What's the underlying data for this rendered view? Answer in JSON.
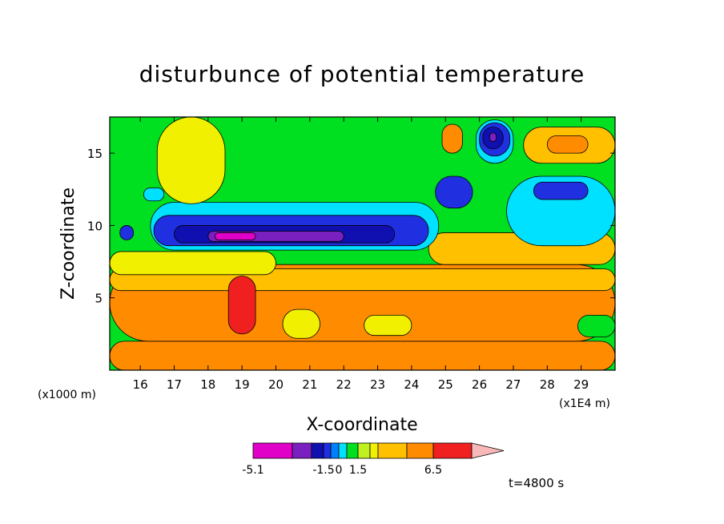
{
  "chart_data": {
    "type": "heatmap",
    "title": "disturbunce of potential temperature",
    "xlabel": "X-coordinate",
    "ylabel": "Z-coordinate",
    "x_tick_labels": [
      "16",
      "17",
      "18",
      "19",
      "20",
      "21",
      "22",
      "23",
      "24",
      "25",
      "26",
      "27",
      "28",
      "29"
    ],
    "x_ticks": [
      16,
      17,
      18,
      19,
      20,
      21,
      22,
      23,
      24,
      25,
      26,
      27,
      28,
      29
    ],
    "xlim": [
      15.1,
      30.0
    ],
    "x_units_left": "(x1000 m)",
    "x_units_right": "(x1E4 m)",
    "y_tick_labels": [
      "5",
      "10",
      "15"
    ],
    "y_ticks": [
      5,
      10,
      15
    ],
    "ylim": [
      0,
      17.5
    ],
    "time_label": "t=4800 s",
    "colorbar": {
      "labels": [
        {
          "text": "-5.1",
          "level": 0
        },
        {
          "text": "-1.5",
          "level": 3
        },
        {
          "text": "0",
          "level": 5
        },
        {
          "text": "1.5",
          "level": 7
        },
        {
          "text": "6.5",
          "level": 11
        }
      ],
      "colors": [
        "#e000c8",
        "#7a20c0",
        "#1010b0",
        "#2030e0",
        "#0080ff",
        "#00e0ff",
        "#00e020",
        "#c0f020",
        "#f0f000",
        "#ffc000",
        "#ff8c00",
        "#f02020",
        "#f07878",
        "#f8b8b8"
      ]
    },
    "regions": [
      {
        "name": "surface-layer",
        "x": [
          15.1,
          30.0
        ],
        "y": [
          0,
          2.0
        ],
        "level": 10
      },
      {
        "name": "lower-warm-band",
        "x": [
          15.1,
          30.0
        ],
        "y": [
          2.0,
          7.3
        ],
        "level": 10
      },
      {
        "name": "upper-warm-band",
        "x": [
          15.1,
          30.0
        ],
        "y": [
          5.5,
          7.0
        ],
        "level": 9
      },
      {
        "name": "stable-band-west",
        "x": [
          15.1,
          20.0
        ],
        "y": [
          6.6,
          8.2
        ],
        "level": 8
      },
      {
        "name": "stable-band-east",
        "x": [
          24.5,
          30.0
        ],
        "y": [
          7.3,
          9.5
        ],
        "level": 9
      },
      {
        "name": "warm-core-19",
        "x": [
          18.6,
          19.4
        ],
        "y": [
          2.5,
          6.5
        ],
        "level": 11
      },
      {
        "name": "yellow-patch-21",
        "x": [
          20.2,
          21.3
        ],
        "y": [
          2.2,
          4.2
        ],
        "level": 8
      },
      {
        "name": "yellow-patch-23",
        "x": [
          22.6,
          24.0
        ],
        "y": [
          2.4,
          3.8
        ],
        "level": 8
      },
      {
        "name": "green-patch-29",
        "x": [
          28.9,
          30.0
        ],
        "y": [
          2.3,
          3.8
        ],
        "level": 6
      },
      {
        "name": "cold-band-cyan",
        "x": [
          16.3,
          24.8
        ],
        "y": [
          8.3,
          11.6
        ],
        "level": 5
      },
      {
        "name": "cold-band-blue",
        "x": [
          16.4,
          24.5
        ],
        "y": [
          8.6,
          10.7
        ],
        "level": 3
      },
      {
        "name": "cold-band-navy",
        "x": [
          17.0,
          23.5
        ],
        "y": [
          8.8,
          10.0
        ],
        "level": 2
      },
      {
        "name": "cold-core-purple",
        "x": [
          18.0,
          22.0
        ],
        "y": [
          8.9,
          9.6
        ],
        "level": 1
      },
      {
        "name": "cold-core-magenta",
        "x": [
          18.2,
          19.4
        ],
        "y": [
          9.0,
          9.5
        ],
        "level": 0
      },
      {
        "name": "east-cyan-lobe",
        "x": [
          26.8,
          30.0
        ],
        "y": [
          8.6,
          13.4
        ],
        "level": 5
      },
      {
        "name": "east-blue-lobe",
        "x": [
          27.6,
          29.2
        ],
        "y": [
          11.8,
          13.0
        ],
        "level": 3
      },
      {
        "name": "orange-lobe-28",
        "x": [
          27.3,
          30.0
        ],
        "y": [
          14.3,
          16.8
        ],
        "level": 9
      },
      {
        "name": "orange-core-28",
        "x": [
          28.0,
          29.2
        ],
        "y": [
          15.0,
          16.2
        ],
        "level": 10
      },
      {
        "name": "vortex-26-cyan",
        "x": [
          25.9,
          27.0
        ],
        "y": [
          14.3,
          17.3
        ],
        "level": 5
      },
      {
        "name": "vortex-26-blue",
        "x": [
          26.0,
          26.9
        ],
        "y": [
          14.8,
          17.1
        ],
        "level": 3
      },
      {
        "name": "vortex-26-navy",
        "x": [
          26.1,
          26.7
        ],
        "y": [
          15.3,
          16.8
        ],
        "level": 2
      },
      {
        "name": "vortex-26-core",
        "x": [
          26.3,
          26.5
        ],
        "y": [
          15.8,
          16.4
        ],
        "level": 1
      },
      {
        "name": "blue-blob-25",
        "x": [
          24.7,
          25.8
        ],
        "y": [
          11.2,
          13.4
        ],
        "level": 3
      },
      {
        "name": "orange-blob-25",
        "x": [
          24.9,
          25.5
        ],
        "y": [
          15.0,
          17.0
        ],
        "level": 10
      },
      {
        "name": "yellow-arc-west",
        "x": [
          16.5,
          18.5
        ],
        "y": [
          11.5,
          17.5
        ],
        "level": 8
      },
      {
        "name": "cyan-blob-west",
        "x": [
          16.1,
          16.7
        ],
        "y": [
          11.7,
          12.6
        ],
        "level": 5
      },
      {
        "name": "blue-blob-west",
        "x": [
          15.4,
          15.8
        ],
        "y": [
          9.0,
          10.0
        ],
        "level": 3
      }
    ]
  }
}
